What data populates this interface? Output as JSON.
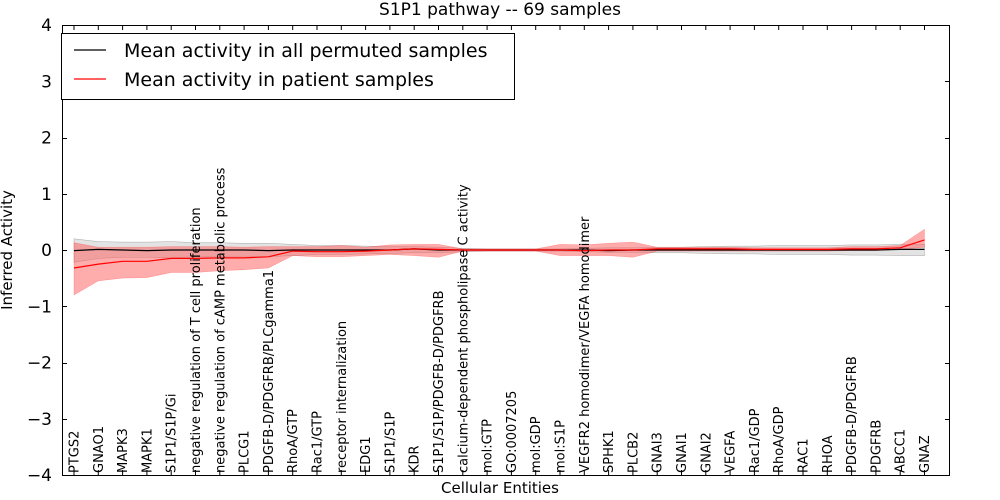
{
  "chart_data": {
    "type": "line",
    "title": "S1P1 pathway -- 69 samples",
    "xlabel": "Cellular Entities",
    "ylabel": "Inferred Activity",
    "ylim": [
      -4,
      4
    ],
    "yticks": [
      -4,
      -3,
      -2,
      -1,
      0,
      1,
      2,
      3,
      4
    ],
    "ytick_labels": [
      "−4",
      "−3",
      "−2",
      "−1",
      "0",
      "1",
      "2",
      "3",
      "4"
    ],
    "legend_position": "top-left",
    "categories": [
      "PTGS2",
      "GNAO1",
      "MAPK3",
      "MAPK1",
      "S1P1/S1P/Gi",
      "negative regulation of T cell proliferation",
      "negative regulation of cAMP metabolic process",
      "PLCG1",
      "PDGFB-D/PDGFRB/PLCgamma1",
      "RhoA/GTP",
      "Rac1/GTP",
      "receptor internalization",
      "EDG1",
      "S1P1/S1P",
      "KDR",
      "S1P1/S1P/PDGFB-D/PDGFRB",
      "calcium-dependent phospholipase C activity",
      "mol:GTP",
      "GO:0007205",
      "mol:GDP",
      "mol:S1P",
      "VEGFR2 homodimer/VEGFA homodimer",
      "SPHK1",
      "PLCB2",
      "GNAI3",
      "GNAI1",
      "GNAI2",
      "VEGFA",
      "Rac1/GDP",
      "RhoA/GDP",
      "RAC1",
      "RHOA",
      "PDGFB-D/PDGFRB",
      "PDGFRB",
      "ABCC1",
      "GNAZ"
    ],
    "series": [
      {
        "name": "Mean activity in all permuted samples",
        "color": "#000000",
        "band_color": "#c8c8c8",
        "values": [
          -0.01,
          0.01,
          0,
          -0.01,
          0,
          0,
          0,
          0,
          -0.01,
          0,
          0,
          0,
          0,
          0,
          0.02,
          0,
          0,
          0,
          0,
          0,
          0,
          0,
          -0.01,
          0,
          0,
          0,
          0,
          0,
          0,
          0,
          0,
          0,
          0,
          0,
          0.01,
          0.01
        ],
        "lower": [
          -0.22,
          -0.15,
          -0.13,
          -0.13,
          -0.14,
          -0.12,
          -0.12,
          -0.11,
          -0.12,
          -0.1,
          -0.08,
          -0.08,
          -0.07,
          -0.06,
          -0.05,
          -0.05,
          -0.03,
          -0.02,
          -0.02,
          -0.02,
          -0.02,
          -0.03,
          -0.04,
          -0.04,
          -0.05,
          -0.05,
          -0.06,
          -0.07,
          -0.07,
          -0.08,
          -0.08,
          -0.08,
          -0.09,
          -0.09,
          -0.1,
          -0.1
        ],
        "upper": [
          0.2,
          0.15,
          0.14,
          0.14,
          0.15,
          0.13,
          0.13,
          0.12,
          0.12,
          0.1,
          0.08,
          0.08,
          0.07,
          0.06,
          0.06,
          0.05,
          0.03,
          0.02,
          0.02,
          0.02,
          0.02,
          0.03,
          0.04,
          0.04,
          0.05,
          0.05,
          0.06,
          0.07,
          0.07,
          0.08,
          0.08,
          0.08,
          0.09,
          0.09,
          0.1,
          0.1
        ]
      },
      {
        "name": "Mean activity in patient samples",
        "color": "#ff0000",
        "band_color": "#ff5a5a",
        "values": [
          -0.32,
          -0.25,
          -0.2,
          -0.2,
          -0.15,
          -0.15,
          -0.14,
          -0.14,
          -0.12,
          -0.02,
          -0.03,
          -0.03,
          -0.02,
          0,
          0.02,
          0.01,
          0,
          0,
          0,
          0,
          0,
          -0.01,
          0,
          0,
          0.02,
          0.02,
          0.02,
          0.02,
          0.01,
          0.01,
          0.01,
          0.01,
          0.02,
          0.02,
          0.04,
          0.18
        ],
        "lower": [
          -0.8,
          -0.55,
          -0.5,
          -0.49,
          -0.4,
          -0.4,
          -0.37,
          -0.35,
          -0.32,
          -0.1,
          -0.12,
          -0.12,
          -0.1,
          -0.08,
          -0.1,
          -0.13,
          -0.02,
          -0.02,
          -0.02,
          -0.02,
          -0.1,
          -0.1,
          -0.1,
          -0.13,
          -0.02,
          -0.02,
          -0.02,
          -0.02,
          -0.02,
          -0.02,
          -0.02,
          -0.02,
          -0.01,
          -0.01,
          0.01,
          0.05
        ],
        "upper": [
          0.13,
          0.05,
          0.05,
          0.05,
          0.06,
          0.06,
          0.06,
          0.05,
          0.06,
          0.06,
          0.06,
          0.08,
          0.05,
          0.09,
          0.1,
          0.1,
          0.02,
          0.02,
          0.02,
          0.02,
          0.1,
          0.09,
          0.12,
          0.14,
          0.05,
          0.05,
          0.05,
          0.05,
          0.04,
          0.04,
          0.04,
          0.04,
          0.06,
          0.06,
          0.08,
          0.37
        ]
      }
    ]
  }
}
